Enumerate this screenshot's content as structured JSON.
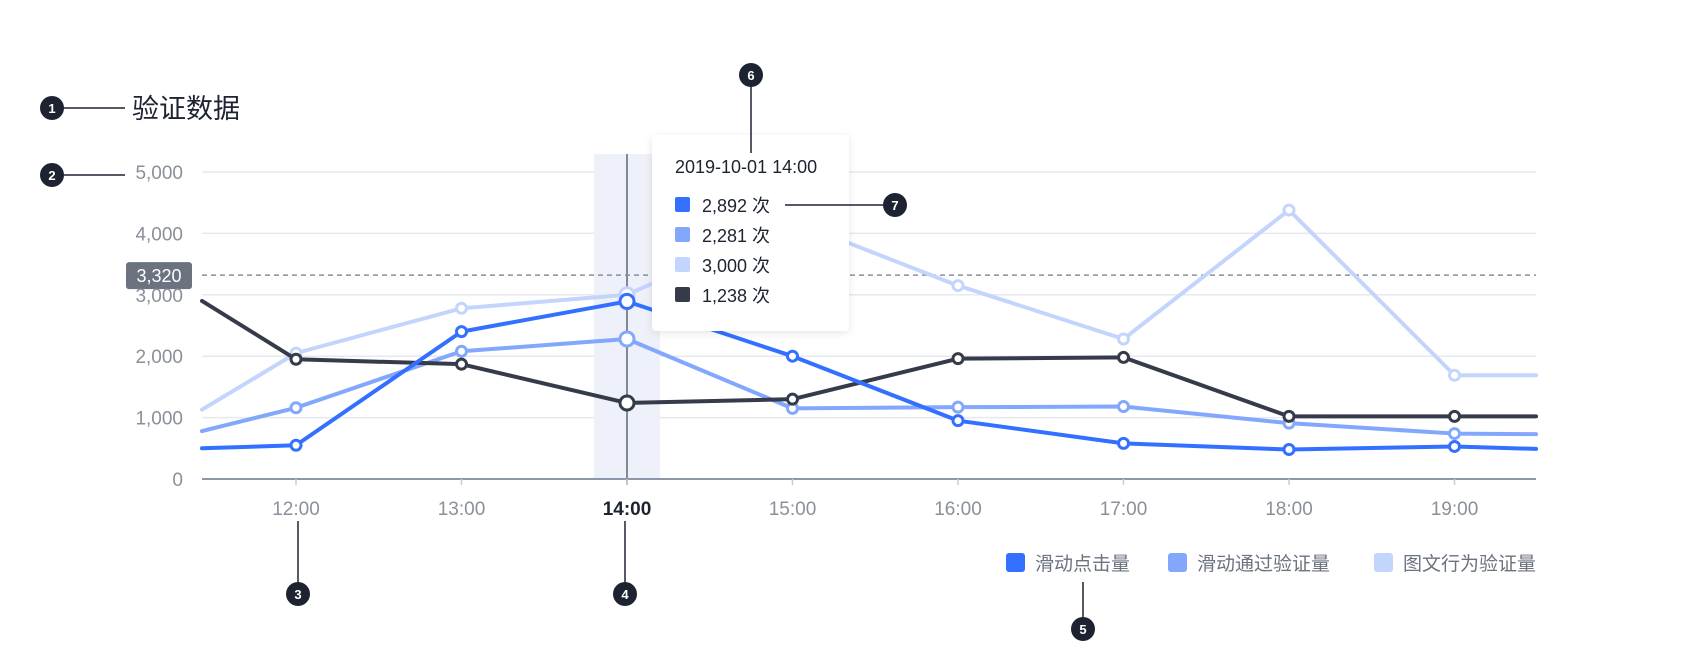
{
  "chart_data": {
    "type": "line",
    "title": "验证数据",
    "categories": [
      "12:00",
      "13:00",
      "14:00",
      "15:00",
      "16:00",
      "17:00",
      "18:00",
      "19:00"
    ],
    "active_category": "14:00",
    "yticks": [
      "0",
      "1,000",
      "2,000",
      "3,000",
      "4,000",
      "5,000"
    ],
    "ylim": [
      0,
      5000
    ],
    "grid": true,
    "reference_line": {
      "value": 3320,
      "label": "3,320"
    },
    "legend_position": "bottom-right",
    "series": [
      {
        "name": "滑动点击量",
        "color": "#3370ff",
        "lead": 500,
        "values": [
          550,
          2400,
          2892,
          2000,
          950,
          580,
          480,
          530
        ],
        "tail": 490
      },
      {
        "name": "滑动通过验证量",
        "color": "#82a7fc",
        "lead": 780,
        "values": [
          1160,
          2080,
          2281,
          1150,
          1170,
          1180,
          910,
          740
        ],
        "tail": 730
      },
      {
        "name": "图文行为验证量",
        "color": "#c4d5fd",
        "lead": 1130,
        "values": [
          2050,
          2780,
          3000,
          4200,
          3150,
          2280,
          4380,
          1690
        ],
        "tail": 1690
      },
      {
        "name": "",
        "color": "#363b4a",
        "lead": 2900,
        "values": [
          1950,
          1870,
          1238,
          1300,
          1960,
          1980,
          1020,
          1020
        ],
        "tail": 1020
      }
    ],
    "tooltip": {
      "title": "2019-10-01 14:00",
      "rows": [
        "2,892 次",
        "2,281 次",
        "3,000 次",
        "1,238 次"
      ]
    }
  },
  "callouts": [
    "1",
    "2",
    "3",
    "4",
    "5",
    "6",
    "7"
  ]
}
